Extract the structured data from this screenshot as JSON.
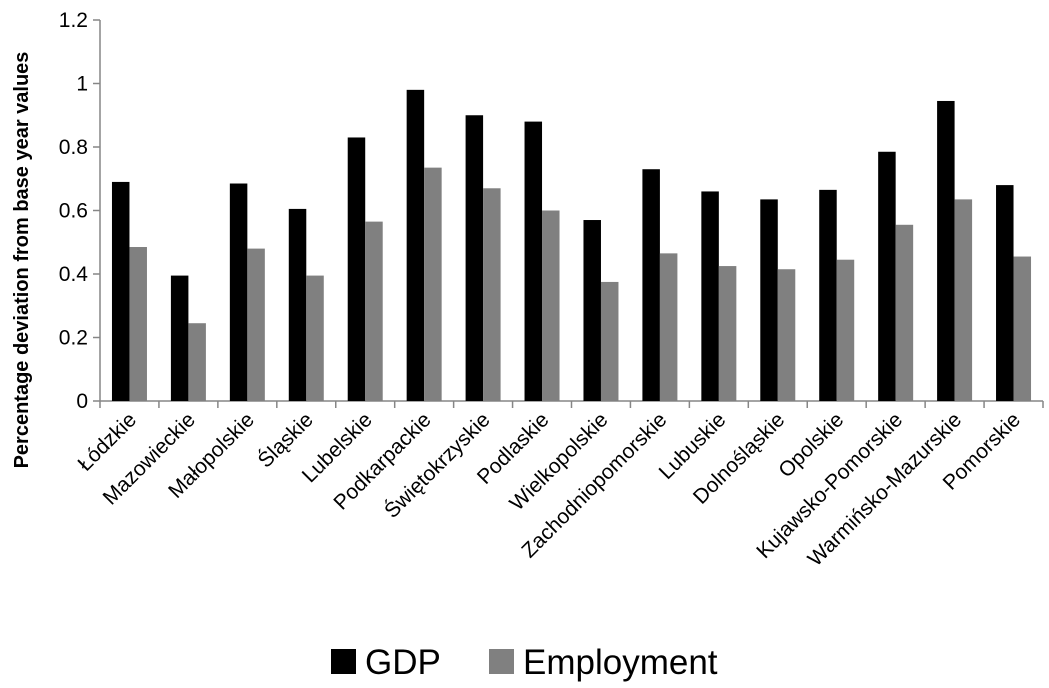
{
  "chart_data": {
    "type": "bar",
    "title": "",
    "xlabel": "",
    "ylabel": "Percentage deviation from base year values",
    "ylim": [
      0,
      1.2
    ],
    "yticks": [
      "0",
      "0.2",
      "0.4",
      "0.6",
      "0.8",
      "1",
      "1.2"
    ],
    "grid": false,
    "legend_position": "bottom",
    "categories": [
      "Łódzkie",
      "Mazowieckie",
      "Małopolskie",
      "Śląskie",
      "Lubelskie",
      "Podkarpackie",
      "Świętokrzyskie",
      "Podlaskie",
      "Wielkopolskie",
      "Zachodniopomorskie",
      "Lubuskie",
      "Dolnośląskie",
      "Opolskie",
      "Kujawsko-Pomorskie",
      "Warmińsko-Mazurskie",
      "Pomorskie"
    ],
    "series": [
      {
        "name": "GDP",
        "color": "#000000",
        "values": [
          0.69,
          0.395,
          0.685,
          0.605,
          0.83,
          0.98,
          0.9,
          0.88,
          0.57,
          0.73,
          0.66,
          0.635,
          0.665,
          0.785,
          0.945,
          0.68
        ]
      },
      {
        "name": "Employment",
        "color": "#808080",
        "values": [
          0.485,
          0.245,
          0.48,
          0.395,
          0.565,
          0.735,
          0.67,
          0.6,
          0.375,
          0.465,
          0.425,
          0.415,
          0.445,
          0.555,
          0.635,
          0.455
        ]
      }
    ]
  }
}
